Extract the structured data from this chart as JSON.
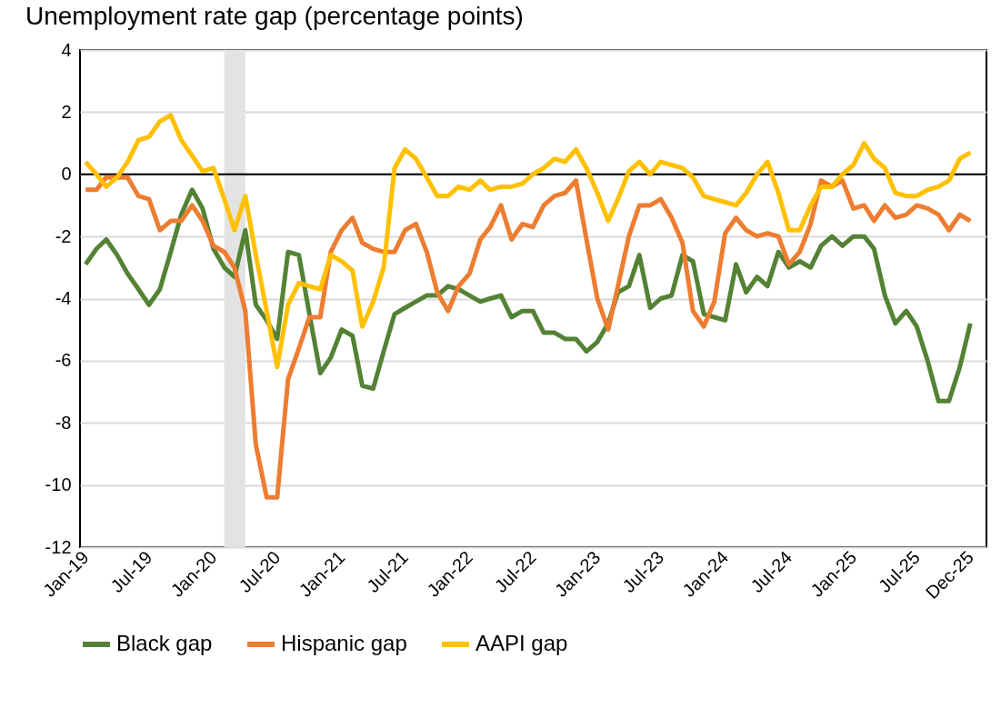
{
  "chart_data": {
    "type": "line",
    "title": "Unemployment rate gap (percentage points)",
    "x": [
      "2019-01",
      "2019-02",
      "2019-03",
      "2019-04",
      "2019-05",
      "2019-06",
      "2019-07",
      "2019-08",
      "2019-09",
      "2019-10",
      "2019-11",
      "2019-12",
      "2020-01",
      "2020-02",
      "2020-03",
      "2020-04",
      "2020-05",
      "2020-06",
      "2020-07",
      "2020-08",
      "2020-09",
      "2020-10",
      "2020-11",
      "2020-12",
      "2021-01",
      "2021-02",
      "2021-03",
      "2021-04",
      "2021-05",
      "2021-06",
      "2021-07",
      "2021-08",
      "2021-09",
      "2021-10",
      "2021-11",
      "2021-12",
      "2022-01",
      "2022-02",
      "2022-03",
      "2022-04",
      "2022-05",
      "2022-06",
      "2022-07",
      "2022-08",
      "2022-09",
      "2022-10",
      "2022-11",
      "2022-12",
      "2023-01",
      "2023-02",
      "2023-03",
      "2023-04",
      "2023-05",
      "2023-06",
      "2023-07",
      "2023-08",
      "2023-09",
      "2023-10",
      "2023-11",
      "2023-12",
      "2024-01",
      "2024-02",
      "2024-03",
      "2024-04",
      "2024-05",
      "2024-06",
      "2024-07",
      "2024-08",
      "2024-09",
      "2024-10",
      "2024-11",
      "2024-12",
      "2025-01",
      "2025-02",
      "2025-03",
      "2025-04",
      "2025-05",
      "2025-06",
      "2025-07",
      "2025-08",
      "2025-09",
      "2025-10",
      "2025-11",
      "2025-12"
    ],
    "series": [
      {
        "name": "Black gap",
        "color": "#548235",
        "values": [
          -2.9,
          -2.4,
          -2.1,
          -2.6,
          -3.2,
          -3.7,
          -4.2,
          -3.7,
          -2.5,
          -1.3,
          -0.5,
          -1.1,
          -2.4,
          -3.0,
          -3.3,
          -1.8,
          -4.2,
          -4.7,
          -5.3,
          -2.5,
          -2.6,
          -4.5,
          -6.4,
          -5.9,
          -5.0,
          -5.2,
          -6.8,
          -6.9,
          -5.7,
          -4.5,
          -4.3,
          -4.1,
          -3.9,
          -3.9,
          -3.6,
          -3.7,
          -3.9,
          -4.1,
          -4.0,
          -3.9,
          -4.6,
          -4.4,
          -4.4,
          -5.1,
          -5.1,
          -5.3,
          -5.3,
          -5.7,
          -5.4,
          -4.8,
          -3.8,
          -3.6,
          -2.6,
          -4.3,
          -4.0,
          -3.9,
          -2.6,
          -2.8,
          -4.5,
          -4.6,
          -4.7,
          -2.9,
          -3.8,
          -3.3,
          -3.6,
          -2.5,
          -3.0,
          -2.8,
          -3.0,
          -2.3,
          -2.0,
          -2.3,
          -2.0,
          -2.0,
          -2.4,
          -3.9,
          -4.8,
          -4.4,
          -4.9,
          -6.0,
          -7.3,
          -7.3,
          -6.2,
          -4.8
        ]
      },
      {
        "name": "Hispanic gap",
        "color": "#ED7D31",
        "values": [
          -0.5,
          -0.5,
          -0.1,
          -0.1,
          -0.1,
          -0.7,
          -0.8,
          -1.8,
          -1.5,
          -1.5,
          -1.0,
          -1.5,
          -2.3,
          -2.5,
          -3.0,
          -4.4,
          -8.7,
          -10.4,
          -10.4,
          -6.6,
          -5.6,
          -4.6,
          -4.6,
          -2.5,
          -1.8,
          -1.4,
          -2.2,
          -2.4,
          -2.5,
          -2.5,
          -1.8,
          -1.6,
          -2.5,
          -3.8,
          -4.4,
          -3.6,
          -3.2,
          -2.1,
          -1.7,
          -1.0,
          -2.1,
          -1.6,
          -1.7,
          -1.0,
          -0.7,
          -0.6,
          -0.2,
          -2.1,
          -4.0,
          -5.0,
          -3.6,
          -2.0,
          -1.0,
          -1.0,
          -0.8,
          -1.4,
          -2.2,
          -4.4,
          -4.9,
          -4.1,
          -1.9,
          -1.4,
          -1.8,
          -2.0,
          -1.9,
          -2.0,
          -2.9,
          -2.5,
          -1.6,
          -0.2,
          -0.4,
          -0.2,
          -1.1,
          -1.0,
          -1.5,
          -1.0,
          -1.4,
          -1.3,
          -1.0,
          -1.1,
          -1.3,
          -1.8,
          -1.3,
          -1.5
        ]
      },
      {
        "name": "AAPI gap",
        "color": "#FFC000",
        "values": [
          0.4,
          0.0,
          -0.4,
          -0.1,
          0.4,
          1.1,
          1.2,
          1.7,
          1.9,
          1.1,
          0.6,
          0.1,
          0.2,
          -0.8,
          -1.8,
          -0.7,
          -2.6,
          -4.4,
          -6.2,
          -4.2,
          -3.5,
          -3.6,
          -3.7,
          -2.6,
          -2.8,
          -3.1,
          -4.9,
          -4.1,
          -3.0,
          0.2,
          0.8,
          0.5,
          -0.1,
          -0.7,
          -0.7,
          -0.4,
          -0.5,
          -0.2,
          -0.5,
          -0.4,
          -0.4,
          -0.3,
          0.0,
          0.2,
          0.5,
          0.4,
          0.8,
          0.2,
          -0.6,
          -1.5,
          -0.8,
          0.1,
          0.4,
          0.0,
          0.4,
          0.3,
          0.2,
          -0.1,
          -0.7,
          -0.8,
          -0.9,
          -1.0,
          -0.6,
          0.0,
          0.4,
          -0.6,
          -1.8,
          -1.8,
          -1.0,
          -0.4,
          -0.4,
          0.0,
          0.3,
          1.0,
          0.5,
          0.2,
          -0.6,
          -0.7,
          -0.7,
          -0.5,
          -0.4,
          -0.2,
          0.5,
          0.7
        ]
      }
    ],
    "xlim": [
      "2018-12-16",
      "2026-01-16"
    ],
    "xticks": [
      {
        "value": "2019-01",
        "label": "Jan-19"
      },
      {
        "value": "2019-07",
        "label": "Jul-19"
      },
      {
        "value": "2020-01",
        "label": "Jan-20"
      },
      {
        "value": "2020-07",
        "label": "Jul-20"
      },
      {
        "value": "2021-01",
        "label": "Jan-21"
      },
      {
        "value": "2021-07",
        "label": "Jul-21"
      },
      {
        "value": "2022-01",
        "label": "Jan-22"
      },
      {
        "value": "2022-07",
        "label": "Jul-22"
      },
      {
        "value": "2023-01",
        "label": "Jan-23"
      },
      {
        "value": "2023-07",
        "label": "Jul-23"
      },
      {
        "value": "2024-01",
        "label": "Jan-24"
      },
      {
        "value": "2024-07",
        "label": "Jul-24"
      },
      {
        "value": "2025-01",
        "label": "Jan-25"
      },
      {
        "value": "2025-07",
        "label": "Jul-25"
      },
      {
        "value": "2025-12",
        "label": "Dec-25"
      }
    ],
    "ylim": [
      -12,
      4
    ],
    "yticks": [
      -12,
      -10,
      -8,
      -6,
      -4,
      -2,
      0,
      2,
      4
    ],
    "grid": "y",
    "legend": "bottom",
    "line_style": "solid",
    "ref_lines": [
      {
        "axis": "y",
        "value": 0,
        "color": "#000000"
      }
    ],
    "bands": [
      {
        "axis": "x",
        "from": "2020-02",
        "to": "2020-04",
        "color": "#e3e3e3"
      }
    ]
  }
}
